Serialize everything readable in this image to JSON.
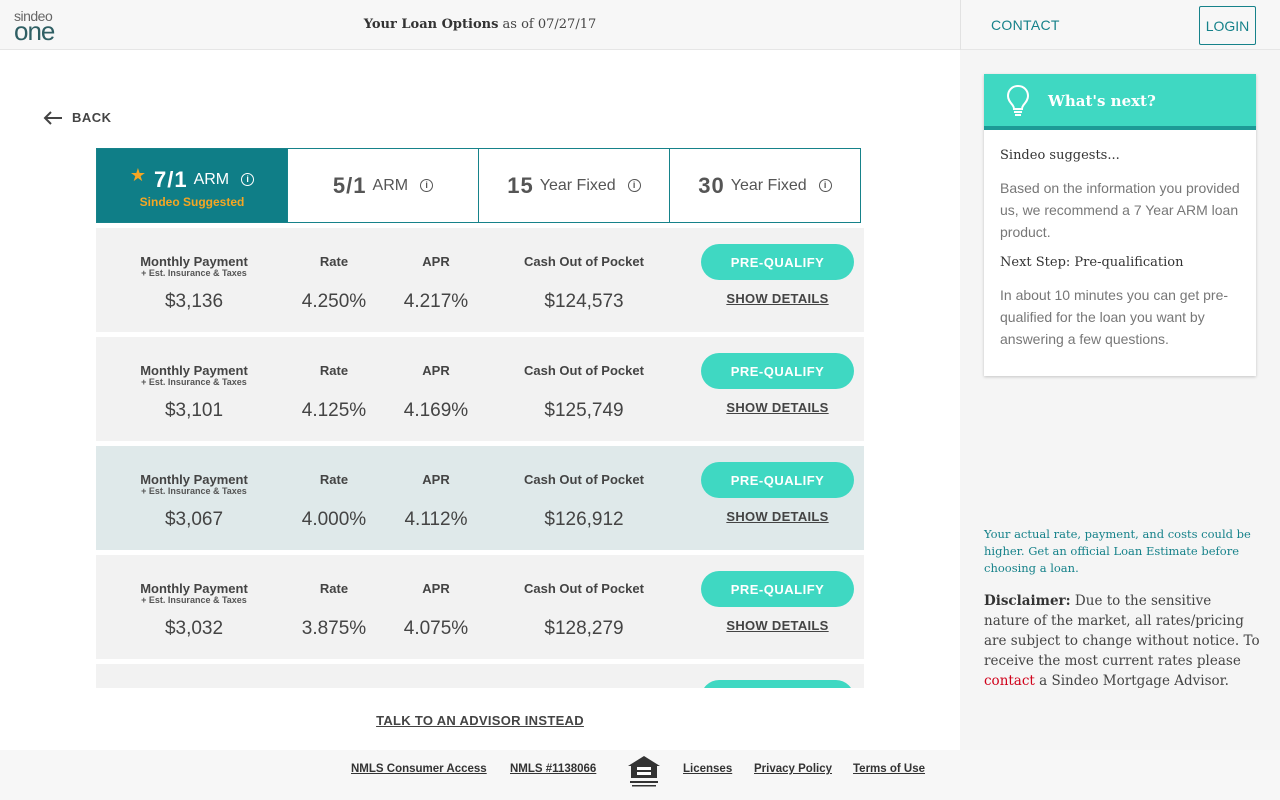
{
  "header": {
    "logo_top": "sindeo",
    "logo_bottom": "one",
    "title_bold": "Your Loan Options",
    "title_rest": " as of 07/27/17",
    "contact": "CONTACT",
    "login": "LOGIN"
  },
  "back_label": "BACK",
  "tabs": [
    {
      "num": "7/1",
      "unit": "ARM",
      "suggested": "Sindeo Suggested",
      "active": true
    },
    {
      "num": "5/1",
      "unit": "ARM"
    },
    {
      "num": "15",
      "unit": "Year Fixed"
    },
    {
      "num": "30",
      "unit": "Year Fixed"
    }
  ],
  "labels": {
    "monthly": "Monthly Payment",
    "monthly_sub": "+ Est. Insurance & Taxes",
    "rate": "Rate",
    "apr": "APR",
    "cash": "Cash Out of Pocket",
    "prequalify": "PRE-QUALIFY",
    "details": "SHOW DETAILS"
  },
  "options": [
    {
      "monthly": "$3,136",
      "rate": "4.250%",
      "apr": "4.217%",
      "cash": "$124,573"
    },
    {
      "monthly": "$3,101",
      "rate": "4.125%",
      "apr": "4.169%",
      "cash": "$125,749"
    },
    {
      "monthly": "$3,067",
      "rate": "4.000%",
      "apr": "4.112%",
      "cash": "$126,912"
    },
    {
      "monthly": "$3,032",
      "rate": "3.875%",
      "apr": "4.075%",
      "cash": "$128,279"
    }
  ],
  "advisor_link": "TALK TO AN ADVISOR INSTEAD",
  "sidebar": {
    "title": "What's next?",
    "suggests": "Sindeo suggests...",
    "recommend": "Based on the information you provided us, we recommend a 7 Year ARM loan product.",
    "next_step": "Next Step: Pre-qualification",
    "next_text": "In about 10 minutes you can get pre-qualified for the loan you want by answering a few questions.",
    "notice": "Your actual rate, payment, and costs could be higher. Get an official Loan Estimate before choosing a loan.",
    "disclaimer_label": "Disclaimer:",
    "disclaimer_text": " Due to the sensitive nature of the market, all rates/pricing are subject to change without notice. To receive the most current rates please ",
    "disclaimer_link": "contact",
    "disclaimer_end": " a Sindeo Mortgage Advisor."
  },
  "footer": {
    "nmls_access": "NMLS Consumer Access",
    "nmls_num": "NMLS #1138066",
    "licenses": "Licenses",
    "privacy": "Privacy Policy",
    "terms": "Terms of Use"
  }
}
